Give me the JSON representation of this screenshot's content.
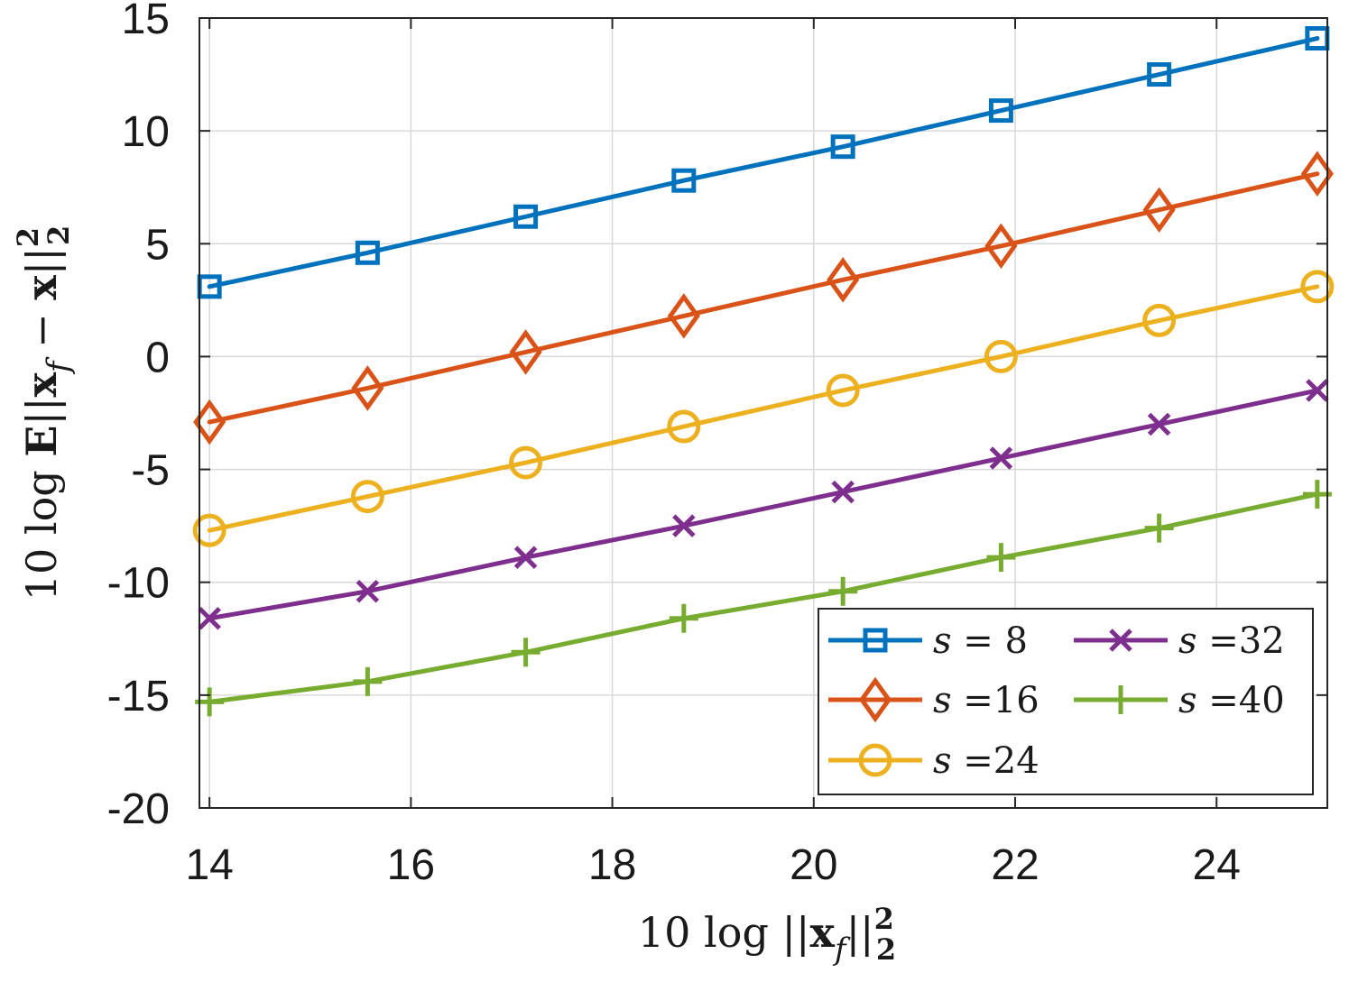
{
  "chart_data": {
    "type": "line",
    "title": "",
    "xlabel": "10 log ||x_f||²₂",
    "ylabel": "10 log E||x_f − x||²₂",
    "xlim": [
      13.9,
      25.1
    ],
    "ylim": [
      -20,
      15
    ],
    "xticks": [
      14,
      16,
      18,
      20,
      22,
      24
    ],
    "yticks": [
      -20,
      -15,
      -10,
      -5,
      0,
      5,
      10,
      15
    ],
    "grid": true,
    "legend_position": "bottom-right",
    "x": [
      14.0,
      15.57,
      17.14,
      18.71,
      20.29,
      21.86,
      23.43,
      25.0
    ],
    "series": [
      {
        "name": "s = 8",
        "label_var": "s",
        "label_eq": "= 8",
        "color": "#0072BD",
        "marker": "square",
        "values": [
          3.1,
          4.6,
          6.2,
          7.8,
          9.3,
          10.9,
          12.5,
          14.1
        ]
      },
      {
        "name": "s =16",
        "label_var": "s",
        "label_eq": "=16",
        "color": "#D95319",
        "marker": "diamond",
        "values": [
          -2.9,
          -1.4,
          0.2,
          1.8,
          3.4,
          4.9,
          6.5,
          8.1
        ]
      },
      {
        "name": "s =24",
        "label_var": "s",
        "label_eq": "=24",
        "color": "#EDB120",
        "marker": "circle",
        "values": [
          -7.7,
          -6.2,
          -4.7,
          -3.1,
          -1.5,
          0.0,
          1.6,
          3.1
        ]
      },
      {
        "name": "s =32",
        "label_var": "s",
        "label_eq": "=32",
        "color": "#7E2F8E",
        "marker": "x",
        "values": [
          -11.6,
          -10.4,
          -8.9,
          -7.5,
          -6.0,
          -4.5,
          -3.0,
          -1.5
        ]
      },
      {
        "name": "s =40",
        "label_var": "s",
        "label_eq": "=40",
        "color": "#77AC30",
        "marker": "plus",
        "values": [
          -15.3,
          -14.4,
          -13.1,
          -11.6,
          -10.4,
          -8.9,
          -7.6,
          -6.1
        ]
      }
    ],
    "legend_order": [
      0,
      3,
      1,
      4,
      2
    ]
  },
  "axis_titles": {
    "x_prefix": "10 log ||",
    "x_main": "x",
    "x_sub": "f",
    "x_suffix": "||",
    "x_sup": "2",
    "x_sub2": "2",
    "y_prefix": "10 log ",
    "y_bold_e": "E",
    "y_mid": "||",
    "y_main": "x",
    "y_sub": "f",
    "y_minus": " − ",
    "y_x2": "x",
    "y_suffix": "||",
    "y_sup": "2",
    "y_sub2": "2"
  }
}
